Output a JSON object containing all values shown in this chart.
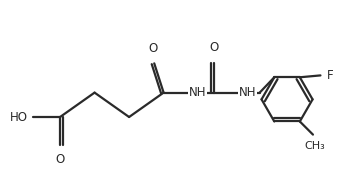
{
  "background_color": "#ffffff",
  "line_color": "#2a2a2a",
  "line_width": 1.6,
  "font_size": 8.5,
  "figsize": [
    3.64,
    1.89
  ],
  "dpi": 100,
  "xlim": [
    0,
    9.5
  ],
  "ylim": [
    0,
    5.0
  ]
}
